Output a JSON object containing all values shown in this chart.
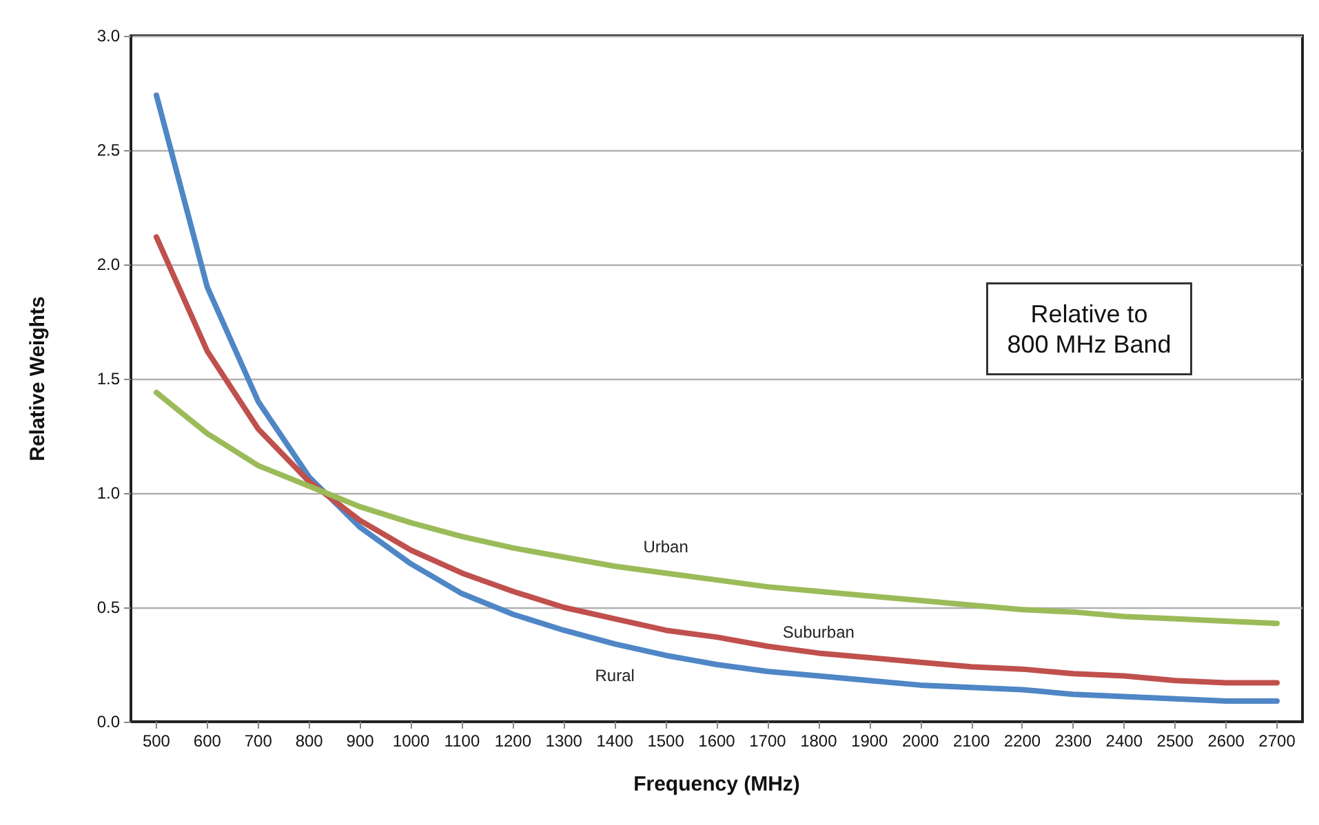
{
  "chart_data": {
    "type": "line",
    "xlabel": "Frequency (MHz)",
    "ylabel": "Relative Weights",
    "categories": [
      "500",
      "600",
      "700",
      "800",
      "900",
      "1000",
      "1100",
      "1200",
      "1300",
      "1400",
      "1500",
      "1600",
      "1700",
      "1800",
      "1900",
      "2000",
      "2100",
      "2200",
      "2300",
      "2400",
      "2500",
      "2600",
      "2700"
    ],
    "series": [
      {
        "name": "Rural",
        "color": "#4f86c6",
        "values": [
          2.74,
          1.9,
          1.4,
          1.07,
          0.85,
          0.69,
          0.56,
          0.47,
          0.4,
          0.34,
          0.29,
          0.25,
          0.22,
          0.2,
          0.18,
          0.16,
          0.15,
          0.14,
          0.12,
          0.11,
          0.1,
          0.09,
          0.09
        ]
      },
      {
        "name": "Suburban",
        "color": "#c0504d",
        "values": [
          2.12,
          1.62,
          1.28,
          1.05,
          0.88,
          0.75,
          0.65,
          0.57,
          0.5,
          0.45,
          0.4,
          0.37,
          0.33,
          0.3,
          0.28,
          0.26,
          0.24,
          0.23,
          0.21,
          0.2,
          0.18,
          0.17,
          0.17
        ]
      },
      {
        "name": "Urban",
        "color": "#9bbb59",
        "values": [
          1.44,
          1.26,
          1.12,
          1.03,
          0.94,
          0.87,
          0.81,
          0.76,
          0.72,
          0.68,
          0.65,
          0.62,
          0.59,
          0.57,
          0.55,
          0.53,
          0.51,
          0.49,
          0.48,
          0.46,
          0.45,
          0.44,
          0.43
        ]
      }
    ],
    "ylim": [
      0,
      3
    ],
    "yticks": [
      {
        "value": 0,
        "label": "0.0"
      },
      {
        "value": 0.5,
        "label": "0.5"
      },
      {
        "value": 1,
        "label": "1.0"
      },
      {
        "value": 1.5,
        "label": "1.5"
      },
      {
        "value": 2,
        "label": "2.0"
      },
      {
        "value": 2.5,
        "label": "2.5"
      },
      {
        "value": 3,
        "label": "3.0"
      }
    ],
    "annotations": [
      "Relative to\n800 MHz Band"
    ],
    "grid": "y",
    "legend": false,
    "marker": "none",
    "line_style": "solid"
  }
}
